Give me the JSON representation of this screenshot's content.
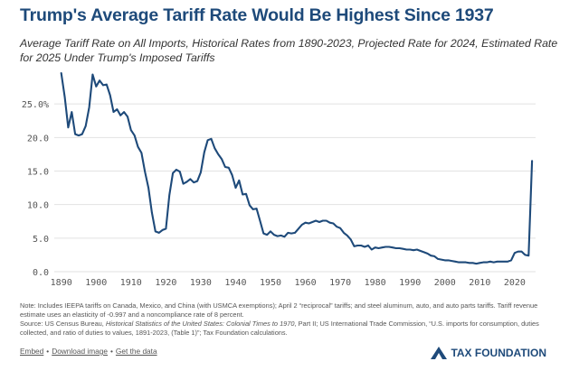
{
  "header": {
    "title": "Trump's Average Tariff Rate Would Be Highest Since 1937",
    "subtitle": "Average Tariff Rate on All Imports, Historical Rates from 1890-2023, Projected Rate for 2024, Estimated Rate for 2025 Under Trump's Imposed Tariffs"
  },
  "chart_data": {
    "type": "line",
    "title": "",
    "xlabel": "",
    "ylabel": "",
    "xlim": [
      1888,
      2026
    ],
    "ylim": [
      0,
      30
    ],
    "grid": true,
    "x_ticks": [
      1890,
      1900,
      1910,
      1920,
      1930,
      1940,
      1950,
      1960,
      1970,
      1980,
      1990,
      2000,
      2010,
      2020
    ],
    "y_ticks": [
      {
        "value": 0,
        "label": "0.0"
      },
      {
        "value": 5,
        "label": "5.0"
      },
      {
        "value": 10,
        "label": "10.0"
      },
      {
        "value": 15,
        "label": "15.0"
      },
      {
        "value": 20,
        "label": "20.0"
      },
      {
        "value": 25,
        "label": "25.0%"
      }
    ],
    "series": [
      {
        "color": "#1e4a7a",
        "x": [
          1890,
          1891,
          1892,
          1893,
          1894,
          1895,
          1896,
          1897,
          1898,
          1899,
          1900,
          1901,
          1902,
          1903,
          1904,
          1905,
          1906,
          1907,
          1908,
          1909,
          1910,
          1911,
          1912,
          1913,
          1914,
          1915,
          1916,
          1917,
          1918,
          1919,
          1920,
          1921,
          1922,
          1923,
          1924,
          1925,
          1926,
          1927,
          1928,
          1929,
          1930,
          1931,
          1932,
          1933,
          1934,
          1935,
          1936,
          1937,
          1938,
          1939,
          1940,
          1941,
          1942,
          1943,
          1944,
          1945,
          1946,
          1947,
          1948,
          1949,
          1950,
          1951,
          1952,
          1953,
          1954,
          1955,
          1956,
          1957,
          1958,
          1959,
          1960,
          1961,
          1962,
          1963,
          1964,
          1965,
          1966,
          1967,
          1968,
          1969,
          1970,
          1971,
          1972,
          1973,
          1974,
          1975,
          1976,
          1977,
          1978,
          1979,
          1980,
          1981,
          1982,
          1983,
          1984,
          1985,
          1986,
          1987,
          1988,
          1989,
          1990,
          1991,
          1992,
          1993,
          1994,
          1995,
          1996,
          1997,
          1998,
          1999,
          2000,
          2001,
          2002,
          2003,
          2004,
          2005,
          2006,
          2007,
          2008,
          2009,
          2010,
          2011,
          2012,
          2013,
          2014,
          2015,
          2016,
          2017,
          2018,
          2019,
          2020,
          2021,
          2022,
          2023,
          2024,
          2025
        ],
        "values": [
          29.6,
          26.0,
          21.5,
          23.8,
          20.5,
          20.3,
          20.5,
          21.7,
          24.5,
          29.4,
          27.6,
          28.5,
          27.8,
          27.9,
          26.3,
          23.8,
          24.2,
          23.3,
          23.8,
          23.1,
          21.1,
          20.3,
          18.6,
          17.7,
          14.9,
          12.5,
          8.8,
          6.0,
          5.8,
          6.2,
          6.4,
          11.4,
          14.7,
          15.2,
          14.9,
          13.1,
          13.4,
          13.8,
          13.3,
          13.5,
          14.8,
          17.8,
          19.6,
          19.8,
          18.4,
          17.5,
          16.8,
          15.6,
          15.5,
          14.4,
          12.5,
          13.6,
          11.5,
          11.6,
          9.9,
          9.3,
          9.4,
          7.6,
          5.7,
          5.5,
          6.0,
          5.5,
          5.3,
          5.4,
          5.2,
          5.8,
          5.7,
          5.8,
          6.4,
          7.0,
          7.3,
          7.2,
          7.4,
          7.6,
          7.4,
          7.6,
          7.6,
          7.3,
          7.2,
          6.7,
          6.5,
          5.8,
          5.4,
          4.8,
          3.8,
          3.9,
          3.9,
          3.7,
          3.9,
          3.3,
          3.6,
          3.5,
          3.6,
          3.7,
          3.7,
          3.6,
          3.5,
          3.5,
          3.4,
          3.3,
          3.3,
          3.2,
          3.3,
          3.1,
          2.9,
          2.7,
          2.4,
          2.3,
          1.9,
          1.8,
          1.7,
          1.7,
          1.6,
          1.5,
          1.4,
          1.4,
          1.4,
          1.3,
          1.3,
          1.2,
          1.3,
          1.4,
          1.4,
          1.5,
          1.4,
          1.5,
          1.5,
          1.5,
          1.5,
          1.7,
          2.8,
          3.0,
          3.0,
          2.5,
          2.4,
          16.5
        ]
      }
    ]
  },
  "notes": {
    "note": "Note: Includes IEEPA tariffs on Canada, Mexico, and China (with USMCA exemptions); April 2 “reciprocal” tariffs; and steel aluminum, auto, and auto parts tariffs. Tariff revenue estimate uses an elasticity of -0.997 and a noncompliance rate of 8 percent.",
    "source_prefix": "Source: US Census Bureau, ",
    "source_title": "Historical Statistics of the United States: Colonial Times to 1970",
    "source_rest": ", Part II; US International Trade Commission, “U.S. imports for consumption, duties collected, and ratio of duties to values, 1891-2023, (Table 1)”; Tax Foundation calculations."
  },
  "footer": {
    "links": [
      "Embed",
      "Download image",
      "Get the data"
    ],
    "separator": "•",
    "brand": "TAX FOUNDATION"
  },
  "colors": {
    "line": "#1e4a7a",
    "title": "#1e4a7a",
    "grid": "#e2e2e2",
    "axis_text": "#555555"
  }
}
